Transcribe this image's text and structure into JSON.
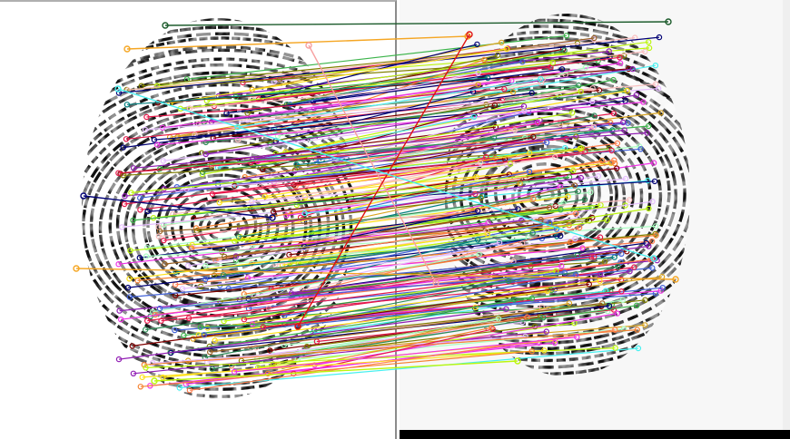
{
  "image": {
    "description_kind": "fingerprint-matching-visualization",
    "panels": [
      "left-fingerprint",
      "right-fingerprint"
    ],
    "ridge_color": "#111111",
    "background_color": "#ffffff",
    "right_background_color": "#f7f7f7",
    "bottom_bar_color": "#000000",
    "divider_color": "#8c8c8c",
    "match_line_palette": [
      "#e6194b",
      "#3cb44b",
      "#ffe119",
      "#4363d8",
      "#f58231",
      "#911eb4",
      "#46f0f0",
      "#f032e6",
      "#bcf60c",
      "#fabebe",
      "#008080",
      "#e6beff",
      "#9a6324",
      "#800000",
      "#aaffc3",
      "#808000",
      "#000075",
      "#ff7f50",
      "#2e8b57",
      "#daa520"
    ],
    "approx_match_count": 260
  }
}
